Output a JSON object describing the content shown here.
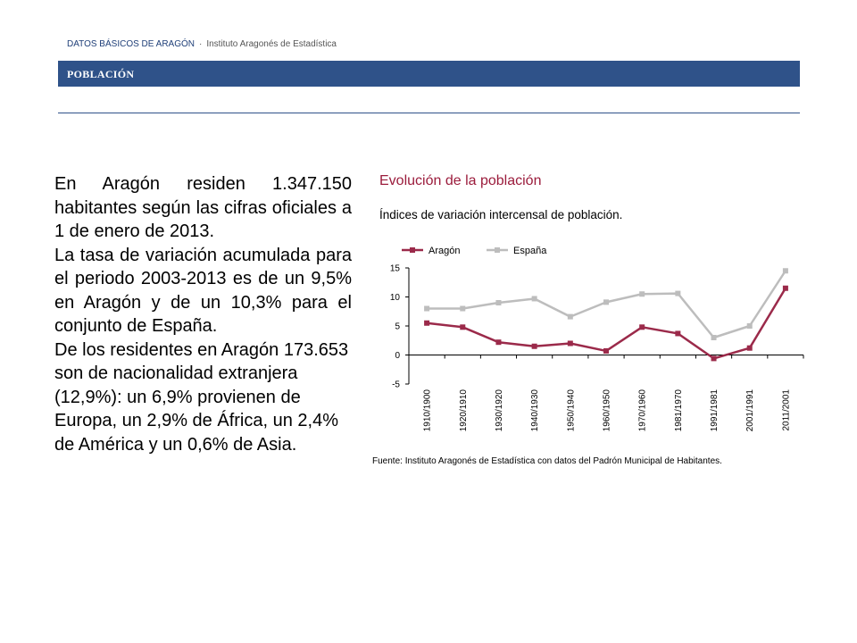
{
  "header": {
    "title": "DATOS BÁSICOS DE ARAGÓN",
    "separator": "·",
    "subtitle": "Instituto Aragonés de Estadística"
  },
  "section": {
    "title": "POBLACIÓN"
  },
  "body": {
    "paragraph1": "En Aragón residen 1.347.150 habitantes según las cifras oficiales a 1 de enero de 2013.",
    "paragraph2": "La tasa de variación acumulada para el periodo 2003-2013 es de un 9,5% en Aragón y de un 10,3% para el conjunto de España.",
    "paragraph3": "De los residentes en Aragón 173.653 son de nacionalidad extranjera (12,9%): un 6,9% provienen de Europa, un 2,9% de África, un 2,4% de América y un 0,6% de Asia."
  },
  "chart_data": {
    "type": "line",
    "title": "Evolución de la población",
    "subtitle": "Índices de variación intercensal de población.",
    "categories": [
      "1910/1900",
      "1920/1910",
      "1930/1920",
      "1940/1930",
      "1950/1940",
      "1960/1950",
      "1970/1960",
      "1981/1970",
      "1991/1981",
      "2001/1991",
      "2011/2001"
    ],
    "series": [
      {
        "name": "Aragón",
        "color": "#9b2a4a",
        "values": [
          5.5,
          4.8,
          2.2,
          1.5,
          2.0,
          0.7,
          4.8,
          3.7,
          -0.6,
          1.2,
          11.5
        ]
      },
      {
        "name": "España",
        "color": "#bdbdbd",
        "values": [
          8.0,
          8.0,
          9.0,
          9.7,
          6.6,
          9.1,
          10.5,
          10.6,
          3.0,
          5.0,
          14.5
        ]
      }
    ],
    "ylim": [
      -5,
      15
    ],
    "yticks": [
      -5,
      0,
      5,
      10,
      15
    ],
    "legend": "top",
    "grid": false,
    "source": "Fuente: Instituto Aragonés de Estadística con datos del Padrón Municipal de Habitantes."
  }
}
